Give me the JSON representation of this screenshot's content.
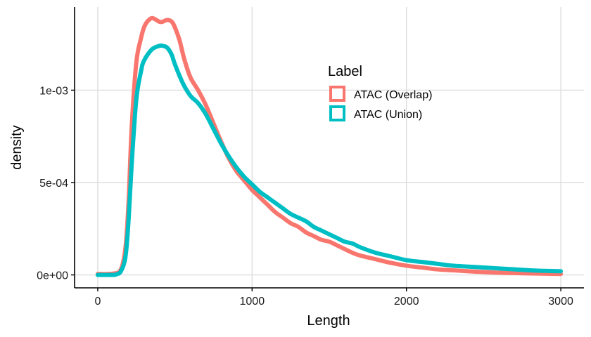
{
  "chart_data": {
    "type": "line",
    "title": "",
    "xlabel": "Length",
    "ylabel": "density",
    "xlim": [
      -150,
      3150
    ],
    "ylim": [
      -7e-05,
      0.00145
    ],
    "x_ticks": [
      0,
      1000,
      2000,
      3000
    ],
    "x_tick_labels": [
      "0",
      "1000",
      "2000",
      "3000"
    ],
    "y_ticks": [
      0,
      0.0005,
      0.001
    ],
    "y_tick_labels": [
      "0e+00",
      "5e-04",
      "1e-03"
    ],
    "grid": true,
    "legend": {
      "title": "Label",
      "position": "top-right-inside",
      "entries": [
        "ATAC (Overlap)",
        "ATAC (Union)"
      ]
    },
    "series": [
      {
        "name": "ATAC (Overlap)",
        "color": "#f8766d",
        "x": [
          0,
          100,
          150,
          180,
          200,
          220,
          250,
          280,
          300,
          320,
          350,
          380,
          400,
          420,
          450,
          480,
          500,
          530,
          560,
          600,
          650,
          700,
          750,
          800,
          850,
          900,
          950,
          1000,
          1050,
          1100,
          1150,
          1200,
          1250,
          1300,
          1350,
          1400,
          1450,
          1500,
          1550,
          1600,
          1650,
          1700,
          1800,
          1900,
          2000,
          2100,
          2200,
          2300,
          2400,
          2600,
          2800,
          3000
        ],
        "values": [
          5e-06,
          7e-06,
          3e-05,
          0.00015,
          0.0004,
          0.0008,
          0.00115,
          0.00128,
          0.00134,
          0.00137,
          0.00139,
          0.00138,
          0.00137,
          0.00137,
          0.00138,
          0.00137,
          0.00134,
          0.00127,
          0.00117,
          0.00107,
          0.001,
          0.00092,
          0.00082,
          0.00072,
          0.00063,
          0.00056,
          0.00051,
          0.00046,
          0.00042,
          0.00038,
          0.00034,
          0.00031,
          0.00028,
          0.00026,
          0.00023,
          0.00021,
          0.00019,
          0.00018,
          0.00016,
          0.00014,
          0.00012,
          0.000105,
          8.5e-05,
          6.5e-05,
          5e-05,
          4e-05,
          3e-05,
          2.5e-05,
          2e-05,
          1.2e-05,
          8e-06,
          5e-06
        ]
      },
      {
        "name": "ATAC (Union)",
        "color": "#00bfc4",
        "x": [
          0,
          100,
          120,
          150,
          180,
          200,
          220,
          250,
          280,
          300,
          350,
          400,
          420,
          450,
          480,
          500,
          550,
          600,
          650,
          700,
          750,
          800,
          850,
          900,
          950,
          1000,
          1050,
          1100,
          1150,
          1200,
          1250,
          1300,
          1350,
          1400,
          1450,
          1500,
          1550,
          1600,
          1650,
          1700,
          1800,
          1900,
          2000,
          2100,
          2200,
          2300,
          2400,
          2500,
          2600,
          2700,
          2800,
          2900,
          3000
        ],
        "values": [
          0.0,
          0.0,
          3e-06,
          2e-05,
          0.0001,
          0.0003,
          0.0006,
          0.00095,
          0.0011,
          0.00116,
          0.00122,
          0.00124,
          0.00124,
          0.00123,
          0.00119,
          0.00114,
          0.00104,
          0.00097,
          0.00093,
          0.00087,
          0.00079,
          0.00071,
          0.00064,
          0.00058,
          0.00053,
          0.00049,
          0.00045,
          0.00042,
          0.00039,
          0.00036,
          0.00033,
          0.00031,
          0.00029,
          0.00026,
          0.00024,
          0.00022,
          0.0002,
          0.00018,
          0.00017,
          0.00015,
          0.00012,
          0.0001,
          8e-05,
          7e-05,
          6e-05,
          5e-05,
          4.5e-05,
          4e-05,
          3.5e-05,
          3e-05,
          2.5e-05,
          2.2e-05,
          2e-05
        ]
      }
    ]
  }
}
